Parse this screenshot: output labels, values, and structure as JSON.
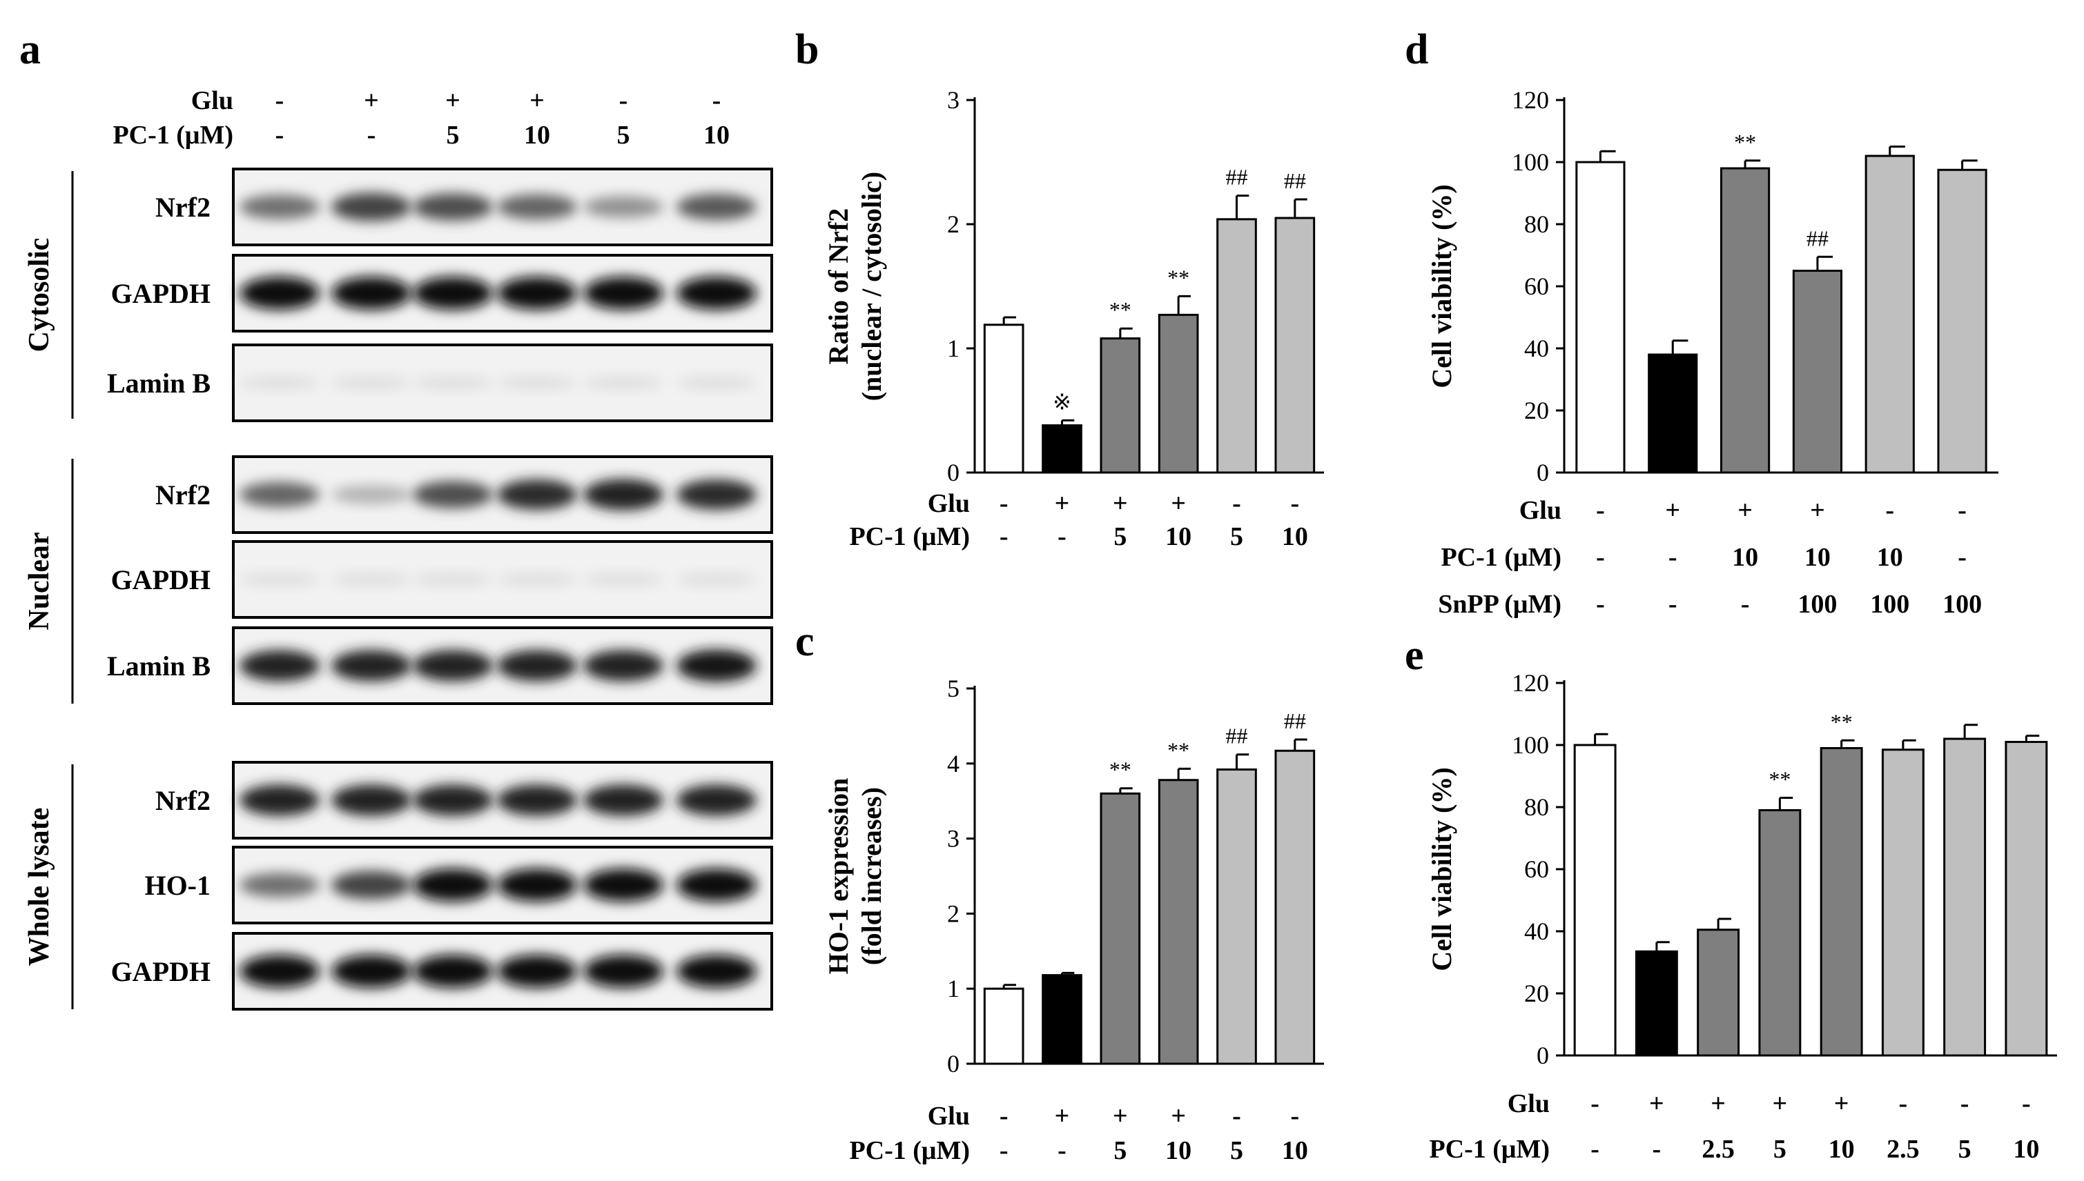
{
  "panel_a": {
    "letter": "a",
    "top_conditions": [
      {
        "label": "Glu",
        "values": [
          "-",
          "+",
          "+",
          "+",
          "-",
          "-"
        ]
      },
      {
        "label": "PC-1 (μM)",
        "values": [
          "-",
          "-",
          "5",
          "10",
          "5",
          "10"
        ]
      }
    ],
    "groups": [
      {
        "name": "Cytosolic",
        "bands": [
          {
            "label": "Nrf2",
            "intensity": [
              0.55,
              0.75,
              0.7,
              0.6,
              0.4,
              0.65
            ]
          },
          {
            "label": "GAPDH",
            "intensity": [
              1,
              1,
              1,
              1,
              1,
              1
            ]
          },
          {
            "label": "Lamin B",
            "intensity": [
              0.05,
              0.05,
              0.05,
              0.05,
              0.05,
              0.05
            ]
          }
        ]
      },
      {
        "name": "Nuclear",
        "bands": [
          {
            "label": "Nrf2",
            "intensity": [
              0.6,
              0.25,
              0.7,
              0.85,
              0.9,
              0.85
            ]
          },
          {
            "label": "GAPDH",
            "intensity": [
              0.05,
              0.05,
              0.05,
              0.05,
              0.05,
              0.05
            ]
          },
          {
            "label": "Lamin B",
            "intensity": [
              0.9,
              0.9,
              0.9,
              0.9,
              0.9,
              0.95
            ]
          }
        ]
      },
      {
        "name": "Whole lysate",
        "bands": [
          {
            "label": "Nrf2",
            "intensity": [
              0.9,
              0.9,
              0.9,
              0.9,
              0.9,
              0.9
            ]
          },
          {
            "label": "HO-1",
            "intensity": [
              0.55,
              0.75,
              1,
              1,
              1,
              1
            ]
          },
          {
            "label": "GAPDH",
            "intensity": [
              1,
              1,
              1,
              1,
              1,
              1
            ]
          }
        ]
      }
    ]
  },
  "chart_data": [
    {
      "id": "b",
      "letter": "b",
      "type": "bar",
      "ylabel_line1": "Ratio of Nrf2",
      "ylabel_line2": "(nuclear / cytosolic)",
      "ylim": [
        0,
        3
      ],
      "yticks": [
        "0",
        "1",
        "2",
        "3"
      ],
      "values": [
        1.19,
        0.38,
        1.08,
        1.27,
        2.04,
        2.05
      ],
      "errors": [
        0.06,
        0.04,
        0.08,
        0.15,
        0.19,
        0.15
      ],
      "fills": [
        "#ffffff",
        "#000000",
        "#7f7f7f",
        "#7f7f7f",
        "#bfbfbf",
        "#bfbfbf"
      ],
      "marks": [
        "",
        "※",
        "**",
        "**",
        "##",
        "##"
      ],
      "conditions": [
        {
          "label": "Glu",
          "values": [
            "-",
            "+",
            "+",
            "+",
            "-",
            "-"
          ]
        },
        {
          "label": "PC-1 (μM)",
          "values": [
            "-",
            "-",
            "5",
            "10",
            "5",
            "10"
          ]
        }
      ]
    },
    {
      "id": "c",
      "letter": "c",
      "type": "bar",
      "ylabel_line1": "HO-1 expression",
      "ylabel_line2": "(fold increases)",
      "ylim": [
        0,
        5
      ],
      "yticks": [
        "0",
        "1",
        "2",
        "3",
        "4",
        "5"
      ],
      "values": [
        1.0,
        1.18,
        3.6,
        3.78,
        3.92,
        4.17
      ],
      "errors": [
        0.05,
        0.03,
        0.07,
        0.15,
        0.2,
        0.15
      ],
      "fills": [
        "#ffffff",
        "#000000",
        "#7f7f7f",
        "#7f7f7f",
        "#bfbfbf",
        "#bfbfbf"
      ],
      "marks": [
        "",
        "",
        "**",
        "**",
        "##",
        "##"
      ],
      "conditions": [
        {
          "label": "Glu",
          "values": [
            "-",
            "+",
            "+",
            "+",
            "-",
            "-"
          ]
        },
        {
          "label": "PC-1 (μM)",
          "values": [
            "-",
            "-",
            "5",
            "10",
            "5",
            "10"
          ]
        }
      ]
    },
    {
      "id": "d",
      "letter": "d",
      "type": "bar",
      "ylabel_line1": "Cell viability (%)",
      "ylabel_line2": "",
      "ylim": [
        0,
        120
      ],
      "yticks": [
        "0",
        "20",
        "40",
        "60",
        "80",
        "100",
        "120"
      ],
      "values": [
        100,
        38,
        98,
        65,
        102,
        97.5
      ],
      "errors": [
        3.5,
        4.5,
        2.5,
        4.5,
        3.0,
        3.0
      ],
      "fills": [
        "#ffffff",
        "#000000",
        "#7f7f7f",
        "#7f7f7f",
        "#bfbfbf",
        "#bfbfbf"
      ],
      "marks": [
        "",
        "",
        "**",
        "##",
        "",
        ""
      ],
      "conditions": [
        {
          "label": "Glu",
          "values": [
            "-",
            "+",
            "+",
            "+",
            "-",
            "-"
          ]
        },
        {
          "label": "PC-1 (μM)",
          "values": [
            "-",
            "-",
            "10",
            "10",
            "10",
            "-"
          ]
        },
        {
          "label": "SnPP (μM)",
          "values": [
            "-",
            "-",
            "-",
            "100",
            "100",
            "100"
          ]
        }
      ]
    },
    {
      "id": "e",
      "letter": "e",
      "type": "bar",
      "ylabel_line1": "Cell viability (%)",
      "ylabel_line2": "",
      "ylim": [
        0,
        120
      ],
      "yticks": [
        "0",
        "20",
        "40",
        "60",
        "80",
        "100",
        "120"
      ],
      "values": [
        100,
        33.5,
        40.5,
        79,
        99,
        98.5,
        102,
        101
      ],
      "errors": [
        3.5,
        3.0,
        3.5,
        4.0,
        2.5,
        3.0,
        4.5,
        2.0
      ],
      "fills": [
        "#ffffff",
        "#000000",
        "#7f7f7f",
        "#7f7f7f",
        "#7f7f7f",
        "#bfbfbf",
        "#bfbfbf",
        "#bfbfbf"
      ],
      "marks": [
        "",
        "",
        "",
        "**",
        "**",
        "",
        "",
        ""
      ],
      "conditions": [
        {
          "label": "Glu",
          "values": [
            "-",
            "+",
            "+",
            "+",
            "+",
            "-",
            "-",
            "-"
          ]
        },
        {
          "label": "PC-1 (μM)",
          "values": [
            "-",
            "-",
            "2.5",
            "5",
            "10",
            "2.5",
            "5",
            "10"
          ]
        }
      ]
    }
  ]
}
